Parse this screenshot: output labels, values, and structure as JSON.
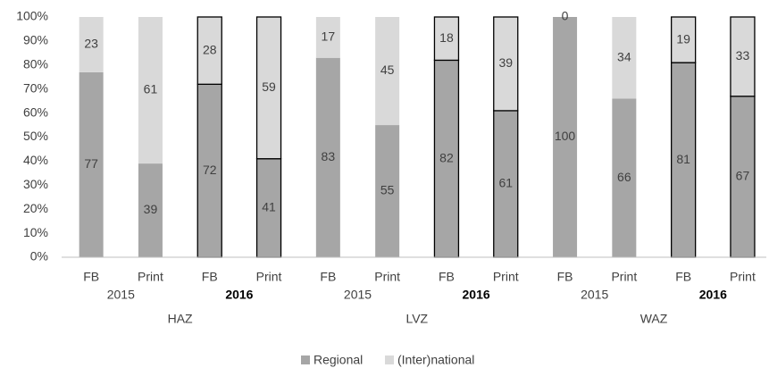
{
  "chart_data": {
    "type": "stacked_bar",
    "categories": [
      "FB",
      "Print",
      "FB",
      "Print",
      "FB",
      "Print",
      "FB",
      "Print",
      "FB",
      "Print",
      "FB",
      "Print"
    ],
    "years": [
      "2015",
      "2016",
      "2015",
      "2016",
      "2015",
      "2016"
    ],
    "groups": [
      "HAZ",
      "LVZ",
      "WAZ"
    ],
    "series": [
      {
        "name": "Regional",
        "color": "#a6a6a6",
        "values": [
          77,
          39,
          72,
          41,
          83,
          55,
          82,
          61,
          100,
          66,
          81,
          67
        ]
      },
      {
        "name": "(Inter)national",
        "color": "#d9d9d9",
        "values": [
          23,
          61,
          28,
          59,
          17,
          45,
          18,
          39,
          0,
          34,
          19,
          33
        ]
      }
    ],
    "ylim": [
      0,
      100
    ],
    "yticks": [
      {
        "value": 0,
        "label": "0%"
      },
      {
        "value": 10,
        "label": "10%"
      },
      {
        "value": 20,
        "label": "20%"
      },
      {
        "value": 30,
        "label": "30%"
      },
      {
        "value": 40,
        "label": "40%"
      },
      {
        "value": 50,
        "label": "50%"
      },
      {
        "value": 60,
        "label": "60%"
      },
      {
        "value": 70,
        "label": "70%"
      },
      {
        "value": 80,
        "label": "80%"
      },
      {
        "value": 90,
        "label": "90%"
      },
      {
        "value": 100,
        "label": "100%"
      }
    ],
    "grid": false,
    "legend": "bottom"
  }
}
